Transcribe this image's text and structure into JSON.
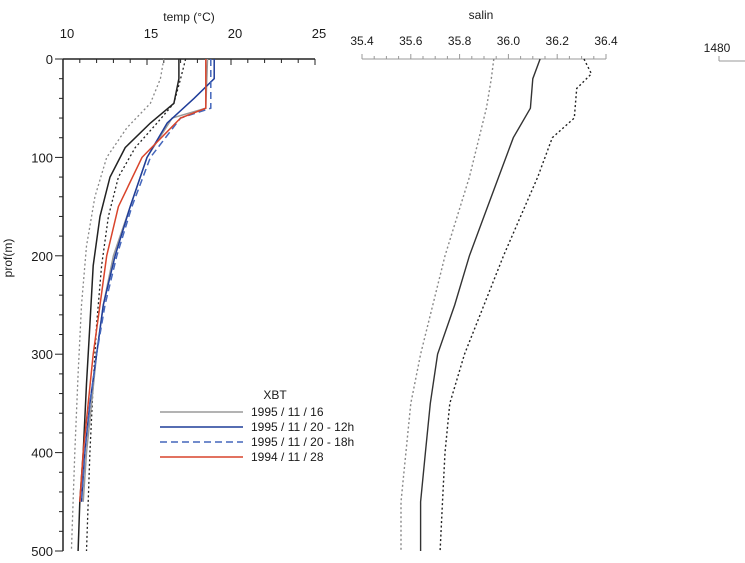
{
  "chart_data": [
    {
      "type": "line",
      "panel": "temperature",
      "xlabel": "temp (°C)",
      "ylabel": "prof(m)",
      "xlim": [
        10,
        25
      ],
      "ylim": [
        0,
        500
      ],
      "y_inverted": true,
      "x_ticks": [
        10,
        15,
        20,
        25
      ],
      "x_tick_labels": [
        "10",
        "15",
        "20",
        "25"
      ],
      "y_ticks": [
        0,
        100,
        200,
        300,
        400,
        500
      ],
      "y_tick_labels": [
        "0",
        "100",
        "200",
        "300",
        "400",
        "500"
      ],
      "envelope": [
        {
          "style": "dotted",
          "color": "#222222",
          "points": [
            [
              17.3,
              0
            ],
            [
              17.0,
              20
            ],
            [
              16.6,
              45
            ],
            [
              15.6,
              65
            ],
            [
              14.3,
              90
            ],
            [
              13.3,
              120
            ],
            [
              12.7,
              160
            ],
            [
              12.3,
              210
            ],
            [
              12.0,
              270
            ],
            [
              11.8,
              330
            ],
            [
              11.6,
              400
            ],
            [
              11.5,
              450
            ],
            [
              11.4,
              500
            ]
          ]
        },
        {
          "style": "dotted",
          "color": "#888888",
          "points": [
            [
              16.0,
              0
            ],
            [
              15.8,
              20
            ],
            [
              15.2,
              45
            ],
            [
              13.8,
              70
            ],
            [
              12.6,
              100
            ],
            [
              11.9,
              140
            ],
            [
              11.4,
              190
            ],
            [
              11.1,
              250
            ],
            [
              10.9,
              320
            ],
            [
              10.7,
              400
            ],
            [
              10.6,
              450
            ],
            [
              10.5,
              500
            ]
          ]
        }
      ],
      "series": [
        {
          "name": "",
          "style": "solid",
          "color": "#222222",
          "points": [
            [
              16.9,
              0
            ],
            [
              16.9,
              20
            ],
            [
              16.6,
              45
            ],
            [
              15.2,
              65
            ],
            [
              13.7,
              90
            ],
            [
              12.8,
              120
            ],
            [
              12.2,
              160
            ],
            [
              11.8,
              210
            ],
            [
              11.6,
              270
            ],
            [
              11.4,
              330
            ],
            [
              11.2,
              400
            ],
            [
              11.0,
              450
            ],
            [
              10.9,
              500
            ]
          ]
        },
        {
          "name": "1995 / 11 / 16",
          "style": "solid",
          "color": "#9a9a9a",
          "points": [
            [
              18.6,
              0
            ],
            [
              18.5,
              50
            ],
            [
              16.5,
              60
            ],
            [
              15.0,
              100
            ],
            [
              14.0,
              150
            ],
            [
              13.0,
              200
            ],
            [
              12.4,
              250
            ],
            [
              12.0,
              300
            ],
            [
              11.7,
              350
            ],
            [
              11.4,
              400
            ],
            [
              11.2,
              450
            ]
          ]
        },
        {
          "name": "1995 / 11 / 20 - 12h",
          "style": "solid",
          "color": "#1f3d99",
          "points": [
            [
              19.0,
              0
            ],
            [
              19.0,
              20
            ],
            [
              17.8,
              40
            ],
            [
              16.2,
              65
            ],
            [
              15.0,
              100
            ],
            [
              14.0,
              150
            ],
            [
              13.1,
              200
            ],
            [
              12.4,
              250
            ],
            [
              12.0,
              300
            ],
            [
              11.6,
              350
            ],
            [
              11.3,
              400
            ],
            [
              11.1,
              450
            ]
          ]
        },
        {
          "name": "1995 / 11 / 20 - 18h",
          "style": "dashed",
          "color": "#4466bb",
          "points": [
            [
              18.8,
              0
            ],
            [
              18.8,
              50
            ],
            [
              17.0,
              60
            ],
            [
              15.2,
              100
            ],
            [
              14.1,
              150
            ],
            [
              13.2,
              200
            ],
            [
              12.5,
              250
            ],
            [
              12.0,
              300
            ],
            [
              11.6,
              350
            ],
            [
              11.3,
              400
            ],
            [
              11.1,
              450
            ]
          ]
        },
        {
          "name": "1994 / 11 / 28",
          "style": "solid",
          "color": "#d9442b",
          "points": [
            [
              18.5,
              0
            ],
            [
              18.5,
              50
            ],
            [
              17.0,
              60
            ],
            [
              14.7,
              100
            ],
            [
              13.3,
              150
            ],
            [
              12.6,
              200
            ],
            [
              12.2,
              250
            ],
            [
              11.8,
              300
            ],
            [
              11.5,
              350
            ],
            [
              11.2,
              400
            ],
            [
              11.0,
              450
            ]
          ]
        }
      ],
      "legend": {
        "title": "XBT",
        "placement": "bottom-right",
        "entries": [
          {
            "label": "1995 / 11 / 16",
            "style": "solid",
            "color": "#9a9a9a"
          },
          {
            "label": "1995 / 11 / 20 - 12h",
            "style": "solid",
            "color": "#1f3d99"
          },
          {
            "label": "1995 / 11 / 20 - 18h",
            "style": "dashed",
            "color": "#4466bb"
          },
          {
            "label": "1994 / 11 / 28",
            "style": "solid",
            "color": "#d9442b"
          }
        ]
      }
    },
    {
      "type": "line",
      "panel": "salinity",
      "xlabel": "salin",
      "xlim": [
        35.4,
        36.4
      ],
      "ylim": [
        0,
        500
      ],
      "y_inverted": true,
      "x_ticks": [
        35.4,
        35.6,
        35.8,
        36.0,
        36.2,
        36.4
      ],
      "x_tick_labels": [
        "35.4",
        "35.6",
        "35.8",
        "36.0",
        "36.2",
        "36.4"
      ],
      "series": [
        {
          "name": "",
          "style": "dotted",
          "color": "#888888",
          "points": [
            [
              35.94,
              0
            ],
            [
              35.93,
              20
            ],
            [
              35.91,
              50
            ],
            [
              35.88,
              80
            ],
            [
              35.84,
              120
            ],
            [
              35.79,
              160
            ],
            [
              35.74,
              200
            ],
            [
              35.69,
              250
            ],
            [
              35.64,
              300
            ],
            [
              35.6,
              350
            ],
            [
              35.58,
              400
            ],
            [
              35.56,
              450
            ],
            [
              35.56,
              500
            ]
          ]
        },
        {
          "name": "",
          "style": "solid",
          "color": "#333333",
          "points": [
            [
              36.13,
              0
            ],
            [
              36.1,
              20
            ],
            [
              36.09,
              50
            ],
            [
              36.02,
              80
            ],
            [
              35.96,
              120
            ],
            [
              35.9,
              160
            ],
            [
              35.84,
              200
            ],
            [
              35.78,
              250
            ],
            [
              35.71,
              300
            ],
            [
              35.68,
              350
            ],
            [
              35.66,
              400
            ],
            [
              35.64,
              450
            ],
            [
              35.64,
              500
            ]
          ]
        },
        {
          "name": "",
          "style": "dotted",
          "color": "#222222",
          "points": [
            [
              36.31,
              0
            ],
            [
              36.34,
              15
            ],
            [
              36.28,
              30
            ],
            [
              36.27,
              60
            ],
            [
              36.18,
              80
            ],
            [
              36.12,
              120
            ],
            [
              36.05,
              160
            ],
            [
              35.98,
              200
            ],
            [
              35.9,
              250
            ],
            [
              35.82,
              300
            ],
            [
              35.76,
              350
            ],
            [
              35.74,
              400
            ],
            [
              35.73,
              450
            ],
            [
              35.72,
              500
            ]
          ]
        }
      ]
    },
    {
      "type": "line",
      "panel": "sound-speed",
      "x_ticks": [
        1480
      ],
      "x_tick_labels": [
        "1480"
      ]
    }
  ]
}
